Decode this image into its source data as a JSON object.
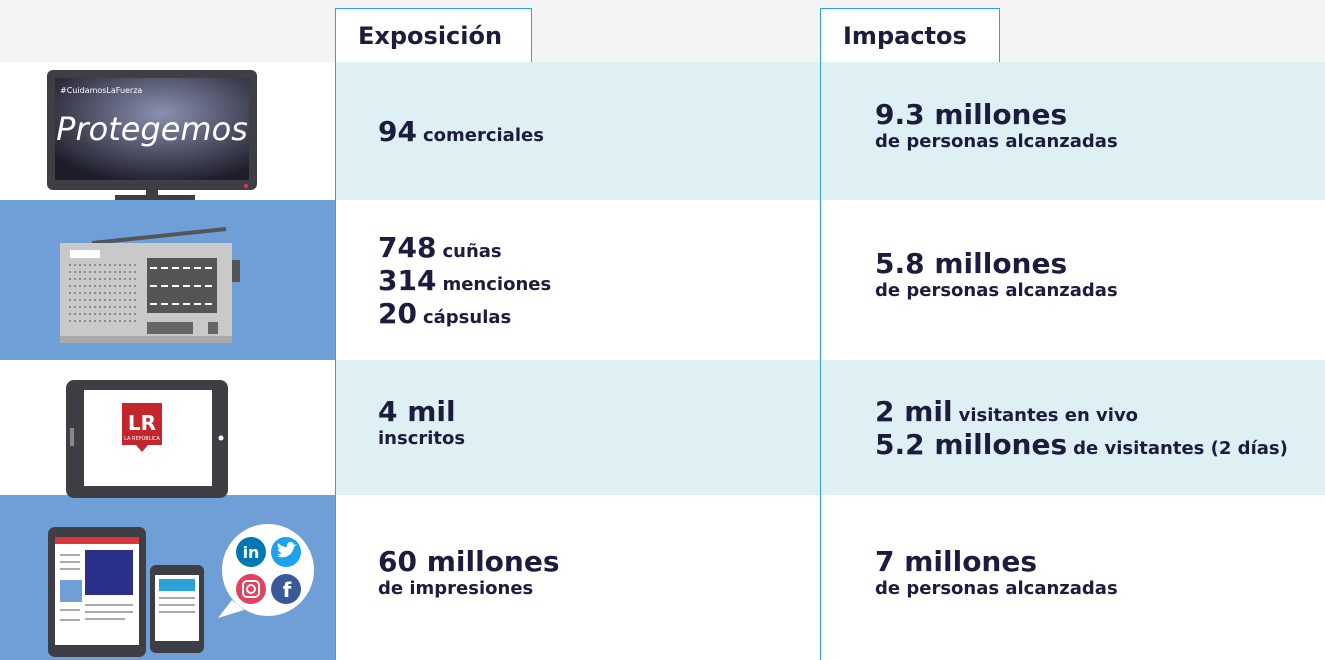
{
  "header": {
    "exposure": "Exposición",
    "impacts": "Impactos"
  },
  "rows": [
    {
      "icon": {
        "hashtag": "#CuidamosLaFuerza",
        "screen_text": "Protegemos"
      },
      "exposure": [
        {
          "number": "94",
          "text": "comerciales"
        }
      ],
      "impacts": [
        {
          "number": "9.3 millones"
        },
        {
          "text": "de personas alcanzadas"
        }
      ]
    },
    {
      "exposure": [
        {
          "number": "748",
          "text": "cuñas"
        },
        {
          "number": "314",
          "text": "menciones"
        },
        {
          "number": "20",
          "text": "cápsulas"
        }
      ],
      "impacts": [
        {
          "number": "5.8 millones"
        },
        {
          "text": "de personas alcanzadas"
        }
      ]
    },
    {
      "icon": {
        "logo": "LR",
        "logo_subtitle": "LA REPÚBLICA"
      },
      "exposure": [
        {
          "number": "4 mil"
        },
        {
          "text": "inscritos"
        }
      ],
      "impacts": [
        {
          "number": "2 mil",
          "text": "visitantes en vivo"
        },
        {
          "number": "5.2 millones",
          "text": "de visitantes (2 días)"
        }
      ]
    },
    {
      "icon": {
        "linkedin": "in",
        "facebook": "f"
      },
      "exposure": [
        {
          "number": "60 millones"
        },
        {
          "text": "de impresiones"
        }
      ],
      "impacts": [
        {
          "number": "7 millones"
        },
        {
          "text": "de personas alcanzadas"
        }
      ]
    }
  ]
}
